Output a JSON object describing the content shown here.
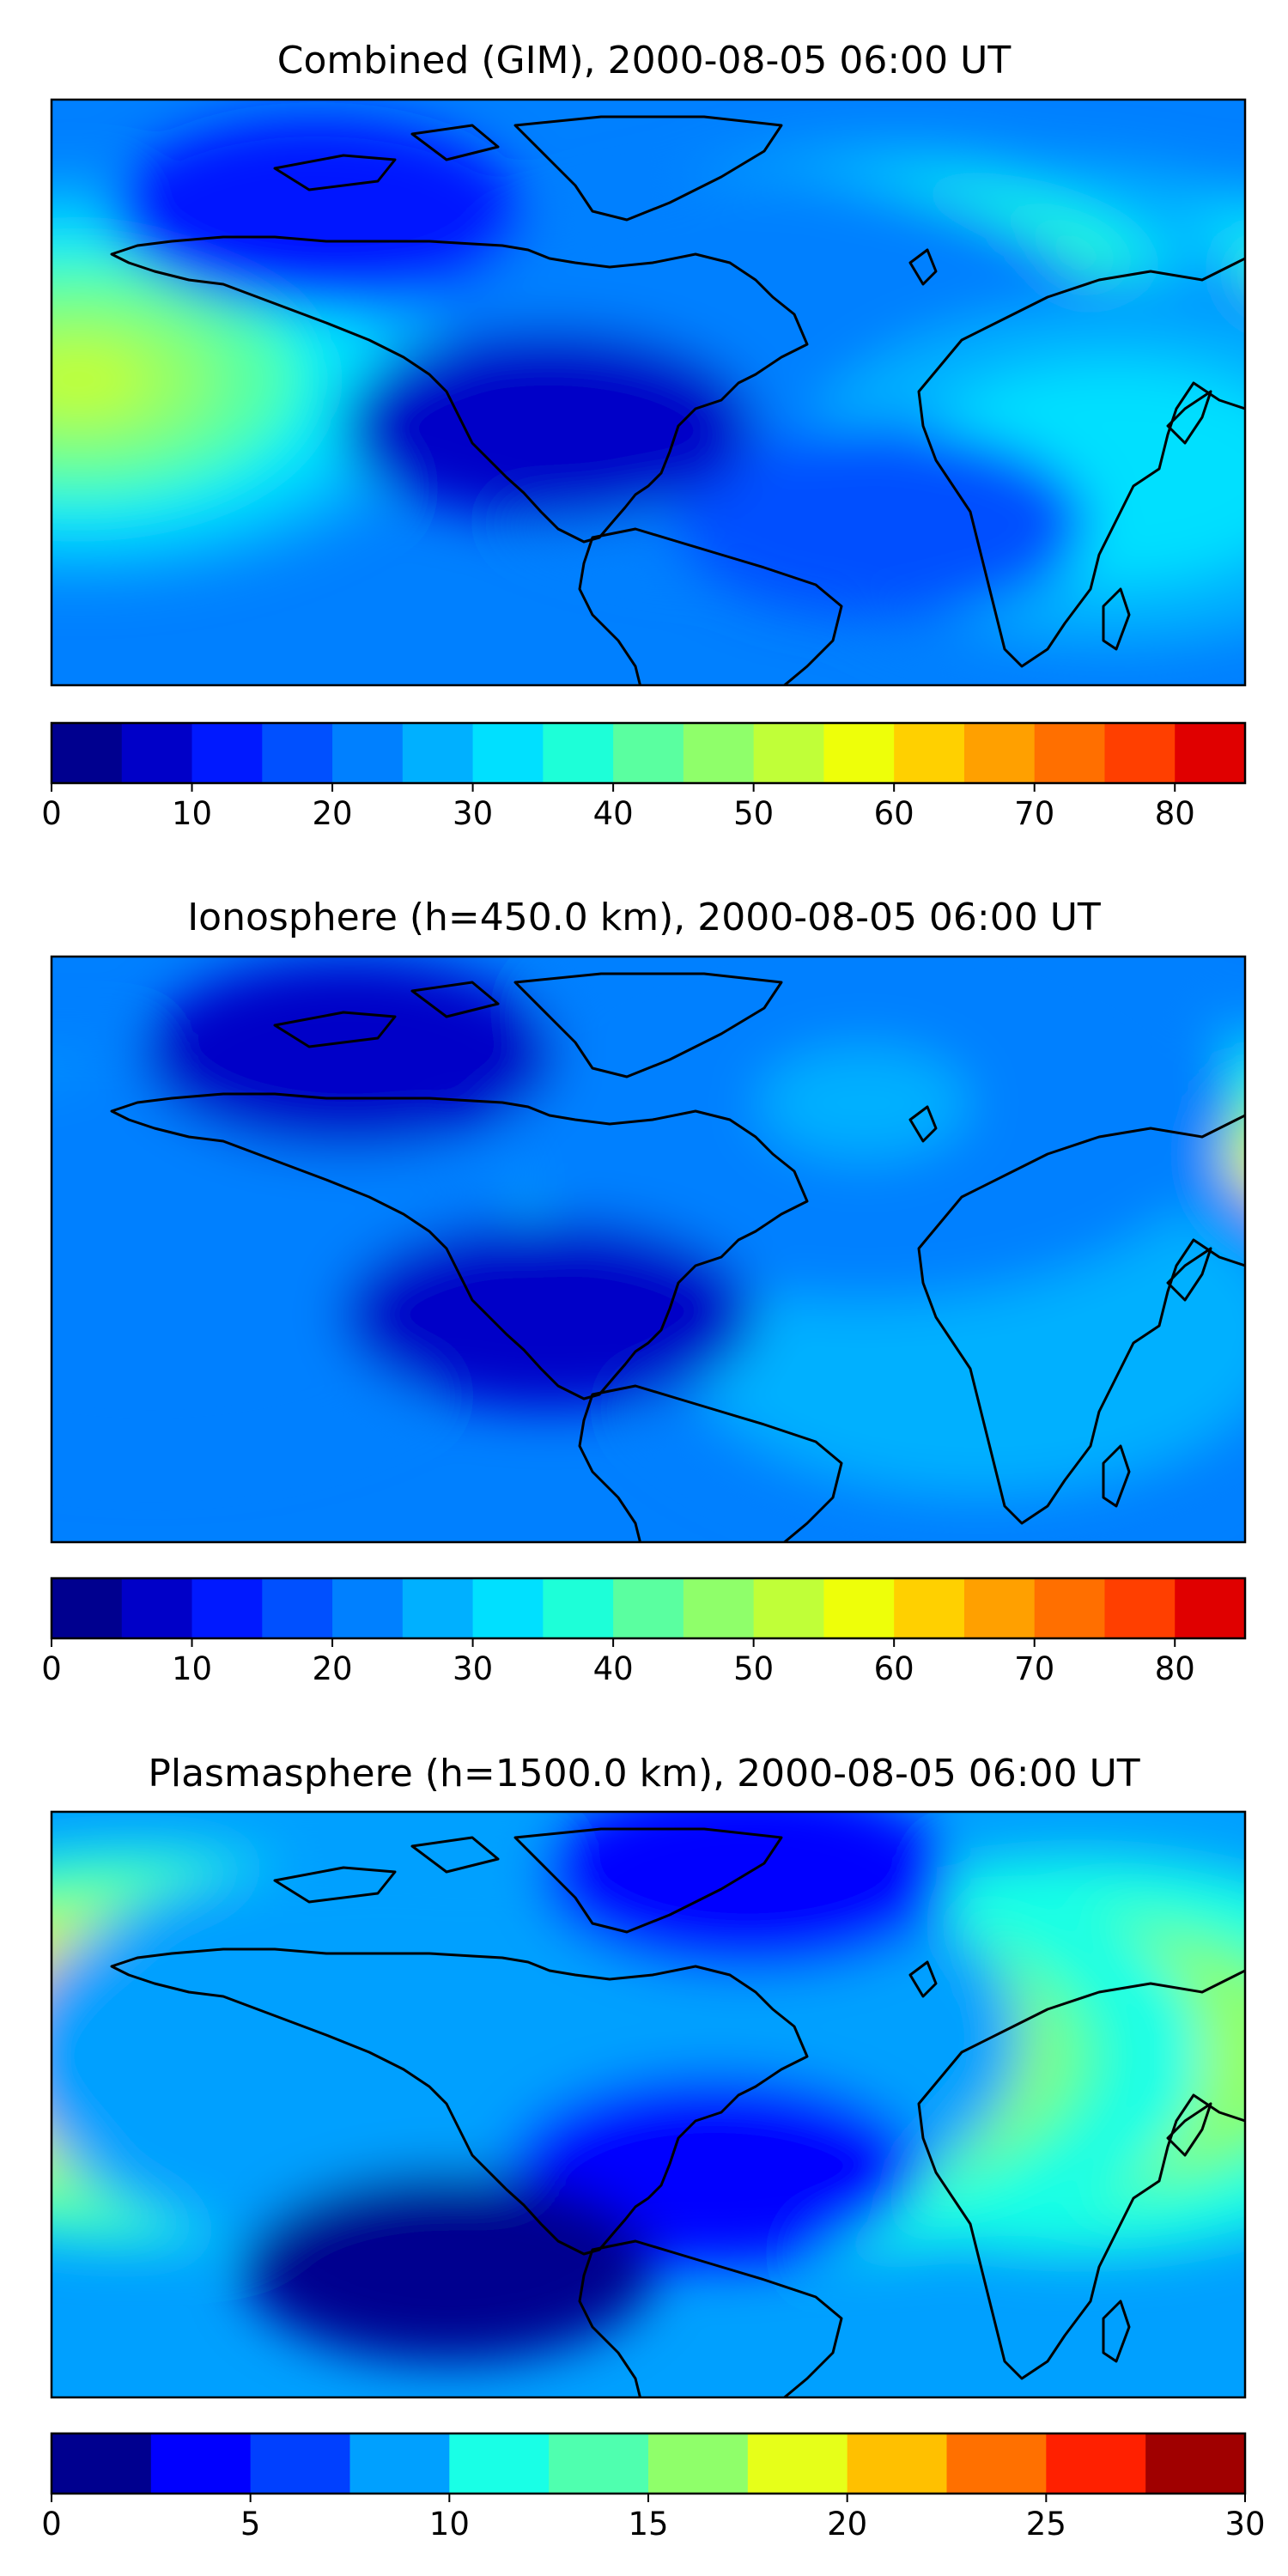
{
  "panels": [
    {
      "title": "Combined (GIM), 2000-08-05 06:00 UT",
      "colorbar": {
        "min": 0,
        "max": 85,
        "step": 5,
        "ticks": [
          "0",
          "10",
          "20",
          "30",
          "40",
          "50",
          "60",
          "70",
          "80"
        ],
        "colors": [
          "#00008f",
          "#0000c8",
          "#0019ff",
          "#0050ff",
          "#0080ff",
          "#00b0ff",
          "#00e0ff",
          "#1dffd8",
          "#5affa0",
          "#8fff6a",
          "#c0ff38",
          "#eeff09",
          "#ffd000",
          "#ffa000",
          "#ff6f00",
          "#ff3f00",
          "#e00000",
          "#9a0000"
        ]
      },
      "blobs": [
        {
          "lon": 120,
          "lat": 10,
          "level": 0.92
        },
        {
          "lon": 165,
          "lat": 4,
          "level": 0.6
        },
        {
          "lon": 75,
          "lat": 15,
          "level": 0.7
        },
        {
          "lon": 35,
          "lat": 5,
          "level": 0.2
        },
        {
          "lon": -172,
          "lat": 4,
          "level": 0.55
        },
        {
          "lon": 140,
          "lat": -25,
          "level": 0.35
        },
        {
          "lon": 70,
          "lat": -40,
          "level": -0.1
        },
        {
          "lon": -100,
          "lat": 55,
          "level": -0.2
        },
        {
          "lon": -30,
          "lat": -10,
          "level": -0.25
        }
      ]
    },
    {
      "title": "Ionosphere  (h=450.0 km), 2000-08-05 06:00 UT",
      "colorbar": {
        "min": 0,
        "max": 85,
        "step": 5,
        "ticks": [
          "0",
          "10",
          "20",
          "30",
          "40",
          "50",
          "60",
          "70",
          "80"
        ],
        "colors": [
          "#00008f",
          "#0000c8",
          "#0019ff",
          "#0050ff",
          "#0080ff",
          "#00b0ff",
          "#00e0ff",
          "#1dffd8",
          "#5affa0",
          "#8fff6a",
          "#c0ff38",
          "#eeff09",
          "#ffd000",
          "#ffa000",
          "#ff6f00",
          "#ff3f00",
          "#e00000",
          "#9a0000"
        ]
      },
      "blobs": [
        {
          "lon": 110,
          "lat": 10,
          "level": 0.8
        },
        {
          "lon": 172,
          "lat": 8,
          "level": 0.7
        },
        {
          "lon": 70,
          "lat": 5,
          "level": 0.55
        },
        {
          "lon": 100,
          "lat": -25,
          "level": 0.3
        },
        {
          "lon": 65,
          "lat": 45,
          "level": 0.25
        },
        {
          "lon": -175,
          "lat": 5,
          "level": 0.35
        },
        {
          "lon": -150,
          "lat": -5,
          "level": 0.2
        },
        {
          "lon": -30,
          "lat": -20,
          "level": -0.25
        },
        {
          "lon": -90,
          "lat": 60,
          "level": -0.25
        }
      ]
    },
    {
      "title": "Plasmasphere (h=1500.0 km), 2000-08-05 06:00 UT",
      "colorbar": {
        "min": 0,
        "max": 30,
        "step": 2.5,
        "ticks": [
          "0",
          "5",
          "10",
          "15",
          "20",
          "25",
          "30"
        ],
        "colors": [
          "#00008f",
          "#0000ff",
          "#0040ff",
          "#00a0ff",
          "#19ffe6",
          "#4fffaf",
          "#8fff6a",
          "#e6ff19",
          "#ffc000",
          "#ff7000",
          "#ff2000",
          "#a00000"
        ]
      },
      "blobs": [
        {
          "lon": -155,
          "lat": 18,
          "level": 0.85
        },
        {
          "lon": 130,
          "lat": 15,
          "level": 0.6
        },
        {
          "lon": 55,
          "lat": 15,
          "level": 0.6
        },
        {
          "lon": 0,
          "lat": 20,
          "level": 0.25
        },
        {
          "lon": -80,
          "lat": 15,
          "level": 0.2
        },
        {
          "lon": 20,
          "lat": -20,
          "level": -0.3
        },
        {
          "lon": -60,
          "lat": -50,
          "level": -0.35
        },
        {
          "lon": 30,
          "lat": 70,
          "level": -0.3
        }
      ]
    }
  ]
}
